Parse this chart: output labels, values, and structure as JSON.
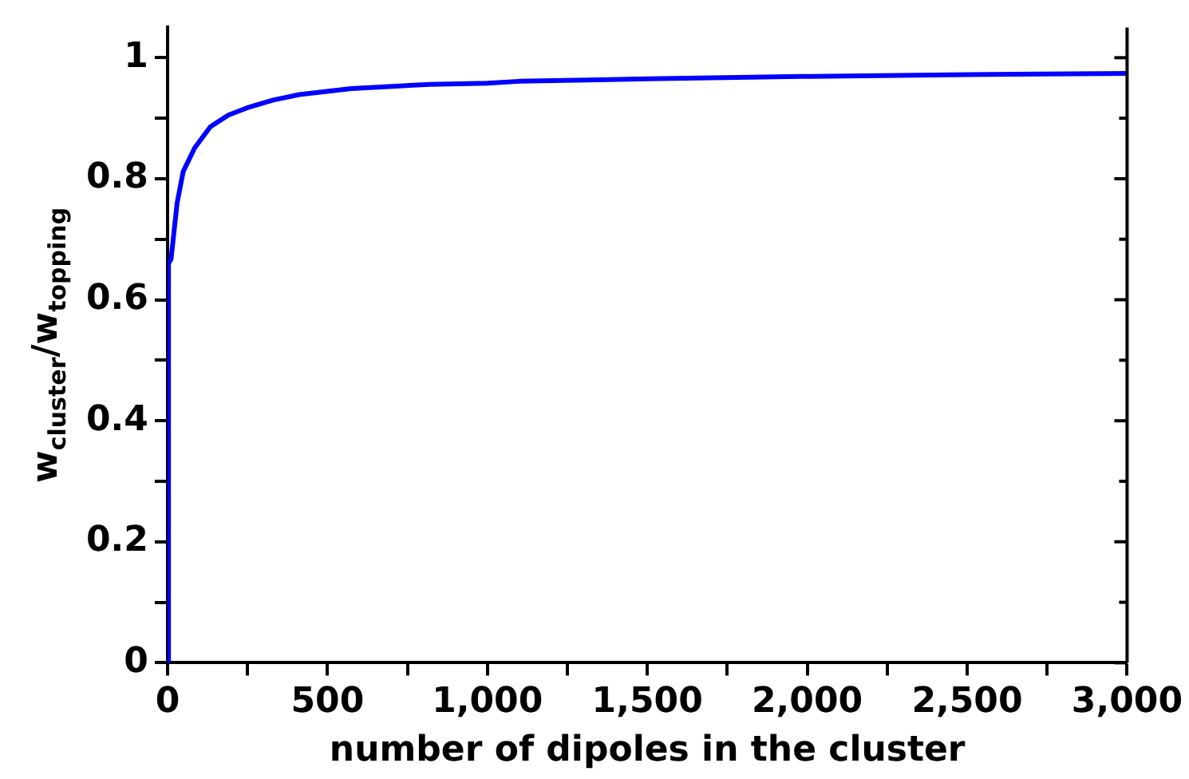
{
  "chart_data": {
    "type": "line",
    "xlabel": "number of dipoles in the cluster",
    "ylabel": "w$_{cluster}$/w$_{topping}$",
    "series": [
      {
        "color": "#0000ff",
        "x": [
          2,
          3,
          11,
          30,
          49,
          85,
          134,
          190,
          248,
          330,
          412,
          574,
          819,
          1000,
          1098,
          1500,
          1980,
          2500,
          3000
        ],
        "values": [
          0,
          0.66,
          0.667,
          0.76,
          0.812,
          0.851,
          0.886,
          0.905,
          0.917,
          0.93,
          0.939,
          0.949,
          0.956,
          0.958,
          0.961,
          0.965,
          0.969,
          0.972,
          0.974
        ]
      }
    ],
    "xlim": [
      0,
      3000
    ],
    "xticks": [
      0,
      {
        "value": 250,
        "label": null
      },
      {
        "value": 500,
        "label": "500"
      },
      {
        "value": 750,
        "label": null
      },
      {
        "value": 1000,
        "label": "1,000"
      },
      {
        "value": 1250,
        "label": null
      },
      {
        "value": 1500,
        "label": "1,500"
      },
      {
        "value": 1750,
        "label": null
      },
      {
        "value": 2000,
        "label": "2,000"
      },
      {
        "value": 2250,
        "label": null
      },
      {
        "value": 2500,
        "label": "2,500"
      },
      {
        "value": 2750,
        "label": null
      },
      {
        "value": 3000,
        "label": "3,000"
      }
    ],
    "ylim": [
      0,
      1.05
    ],
    "yticks": [
      0,
      {
        "value": 0.1,
        "label": null
      },
      0.2,
      {
        "value": 0.3,
        "label": null
      },
      0.4,
      {
        "value": 0.5,
        "label": null
      },
      0.6,
      {
        "value": 0.7,
        "label": null
      },
      0.8,
      {
        "value": 0.9,
        "label": null
      },
      1
    ],
    "grid": false,
    "legend": false,
    "marker": "none",
    "line_style": "solid"
  }
}
